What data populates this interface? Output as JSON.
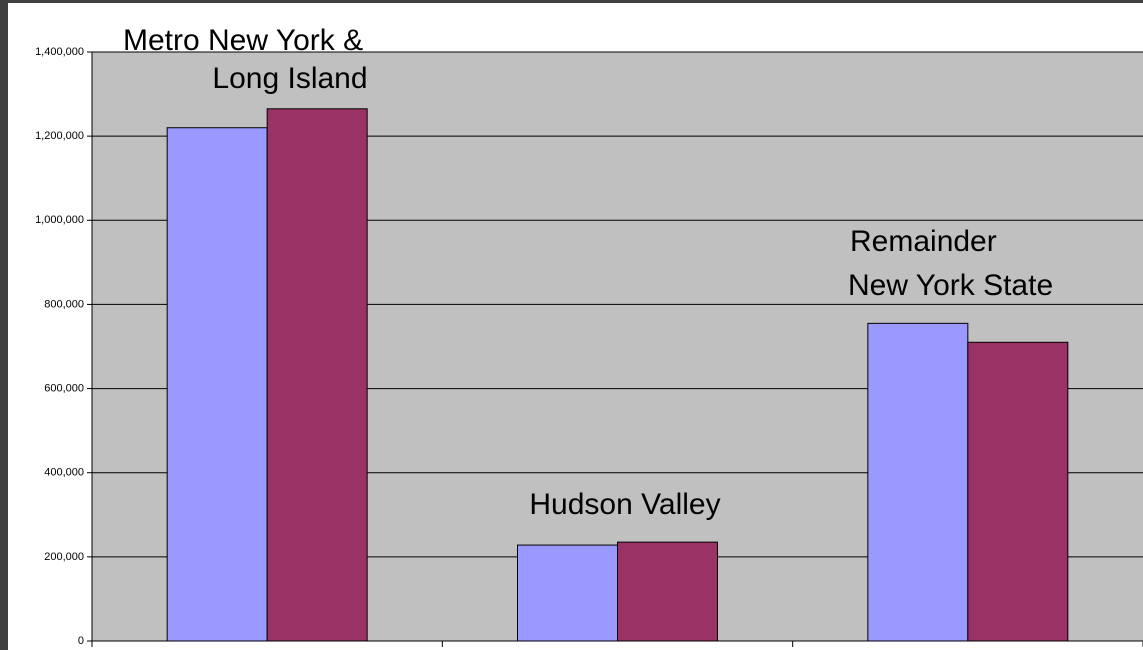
{
  "chart_data": {
    "type": "bar",
    "categories": [
      [
        "Metro New York &",
        "Long Island"
      ],
      [
        "Hudson Valley"
      ],
      [
        "Remainder",
        "New York State"
      ]
    ],
    "series": [
      {
        "color": "#9999ff",
        "values": [
          1220000,
          228000,
          755000
        ]
      },
      {
        "color": "#993366",
        "values": [
          1265000,
          235000,
          710000
        ]
      }
    ],
    "ylim": [
      0,
      1400000
    ],
    "yticks": [
      {
        "value": 0,
        "label": "0"
      },
      {
        "value": 200000,
        "label": "200,000"
      },
      {
        "value": 400000,
        "label": "400,000"
      },
      {
        "value": 600000,
        "label": "600,000"
      },
      {
        "value": 800000,
        "label": "800,000"
      },
      {
        "value": 1000000,
        "label": "1,000,000"
      },
      {
        "value": 1200000,
        "label": "1,200,000"
      },
      {
        "value": 1400000,
        "label": "1,400,000"
      }
    ],
    "grid": true,
    "plot_color": "#c0c0c0"
  }
}
